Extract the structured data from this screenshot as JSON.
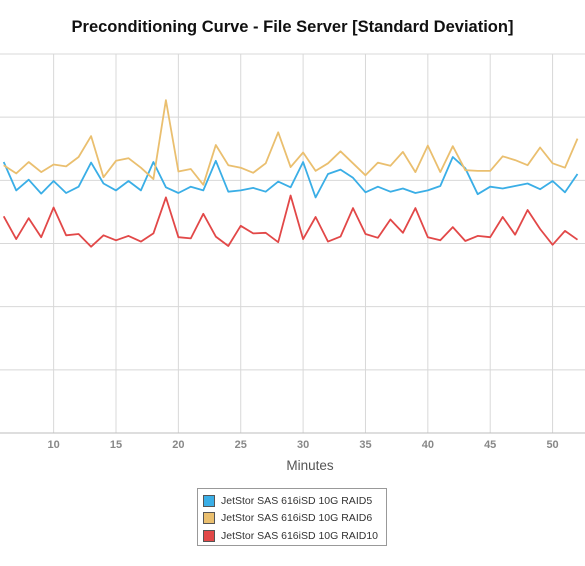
{
  "chart_data": {
    "type": "line",
    "title": "Preconditioning Curve - File Server [Standard Deviation]",
    "xlabel": "Minutes",
    "ylabel": "",
    "xlim": [
      5.7,
      52.6
    ],
    "ylim": [
      0,
      0.6
    ],
    "x_ticks": [
      10,
      15,
      20,
      25,
      30,
      35,
      40,
      45,
      50
    ],
    "grid": true,
    "legend_position": "bottom",
    "x": [
      6,
      7,
      8,
      9,
      10,
      11,
      12,
      13,
      14,
      15,
      16,
      17,
      18,
      19,
      20,
      21,
      22,
      23,
      24,
      25,
      26,
      27,
      28,
      29,
      30,
      31,
      32,
      33,
      34,
      35,
      36,
      37,
      38,
      39,
      40,
      41,
      42,
      43,
      44,
      45,
      46,
      47,
      48,
      49,
      50,
      51,
      52
    ],
    "series": [
      {
        "name": "JetStor SAS 616iSD 10G RAID5",
        "color": "#3aaee6",
        "values": [
          0.429,
          0.384,
          0.401,
          0.379,
          0.399,
          0.38,
          0.39,
          0.428,
          0.395,
          0.384,
          0.399,
          0.384,
          0.429,
          0.389,
          0.38,
          0.39,
          0.384,
          0.431,
          0.382,
          0.384,
          0.388,
          0.382,
          0.398,
          0.389,
          0.429,
          0.373,
          0.41,
          0.417,
          0.404,
          0.381,
          0.39,
          0.382,
          0.387,
          0.38,
          0.384,
          0.391,
          0.437,
          0.419,
          0.378,
          0.39,
          0.387,
          0.391,
          0.395,
          0.386,
          0.399,
          0.381,
          0.41
        ]
      },
      {
        "name": "JetStor SAS 616iSD 10G RAID6",
        "color": "#eabf6f",
        "values": [
          0.424,
          0.411,
          0.429,
          0.413,
          0.425,
          0.422,
          0.437,
          0.47,
          0.405,
          0.431,
          0.435,
          0.42,
          0.402,
          0.527,
          0.414,
          0.418,
          0.393,
          0.456,
          0.424,
          0.42,
          0.412,
          0.427,
          0.476,
          0.421,
          0.444,
          0.415,
          0.427,
          0.446,
          0.427,
          0.408,
          0.428,
          0.423,
          0.445,
          0.413,
          0.455,
          0.413,
          0.454,
          0.416,
          0.415,
          0.415,
          0.438,
          0.432,
          0.424,
          0.452,
          0.427,
          0.42,
          0.466
        ]
      },
      {
        "name": "JetStor SAS 616iSD 10G RAID10",
        "color": "#e24848",
        "values": [
          0.343,
          0.307,
          0.34,
          0.31,
          0.357,
          0.313,
          0.315,
          0.295,
          0.313,
          0.305,
          0.312,
          0.303,
          0.316,
          0.373,
          0.31,
          0.308,
          0.347,
          0.311,
          0.296,
          0.328,
          0.316,
          0.317,
          0.302,
          0.376,
          0.307,
          0.342,
          0.303,
          0.311,
          0.356,
          0.315,
          0.309,
          0.338,
          0.317,
          0.356,
          0.31,
          0.305,
          0.326,
          0.304,
          0.312,
          0.31,
          0.342,
          0.314,
          0.353,
          0.323,
          0.298,
          0.32,
          0.306
        ]
      }
    ]
  }
}
